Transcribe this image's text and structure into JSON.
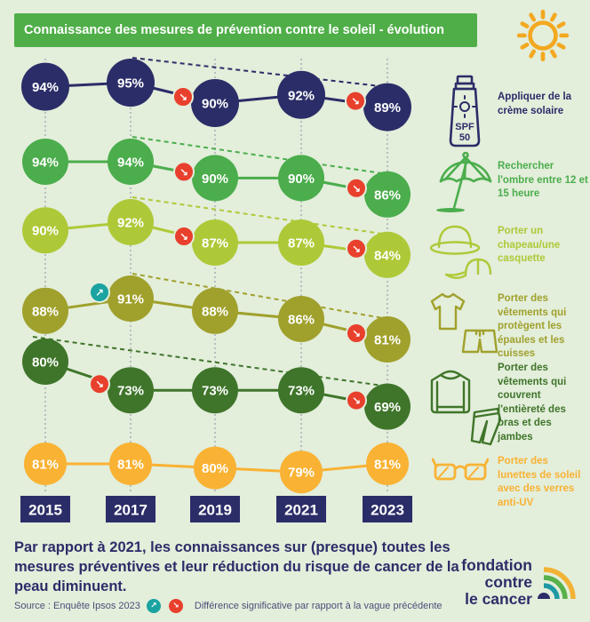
{
  "header": {
    "title": "Connaissance des mesures de prévention contre le soleil - évolution"
  },
  "chart_data": {
    "type": "line",
    "title": "Connaissance des mesures de prévention contre le soleil - évolution",
    "unit": "%",
    "categories": [
      "2015",
      "2017",
      "2019",
      "2021",
      "2023"
    ],
    "series": [
      {
        "name": "Appliquer de la crème solaire",
        "color": "#2b2d68",
        "values": [
          94,
          95,
          90,
          92,
          89
        ],
        "significant_changes": [
          {
            "category": "2019",
            "direction": "down"
          },
          {
            "category": "2023",
            "direction": "down"
          }
        ],
        "trend_arrow": {
          "from": "2017",
          "to": "2023"
        }
      },
      {
        "name": "Rechercher l'ombre entre 12 et 15 heure",
        "color": "#4bad4c",
        "values": [
          94,
          94,
          90,
          90,
          86
        ],
        "significant_changes": [
          {
            "category": "2019",
            "direction": "down"
          },
          {
            "category": "2023",
            "direction": "down"
          }
        ],
        "trend_arrow": {
          "from": "2017",
          "to": "2023"
        }
      },
      {
        "name": "Porter un chapeau/une casquette",
        "color": "#aec938",
        "values": [
          90,
          92,
          87,
          87,
          84
        ],
        "significant_changes": [
          {
            "category": "2019",
            "direction": "down"
          },
          {
            "category": "2023",
            "direction": "down"
          }
        ],
        "trend_arrow": {
          "from": "2017",
          "to": "2023"
        }
      },
      {
        "name": "Porter des vêtements qui protègent les épaules et les cuisses",
        "color": "#a0a12c",
        "values": [
          88,
          91,
          88,
          86,
          81
        ],
        "significant_changes": [
          {
            "category": "2017",
            "direction": "up"
          },
          {
            "category": "2023",
            "direction": "down"
          }
        ],
        "trend_arrow": {
          "from": "2017",
          "to": "2023"
        }
      },
      {
        "name": "Porter des vêtements qui couvrent l'entièreté des bras et des jambes",
        "color": "#3f752a",
        "values": [
          80,
          73,
          73,
          73,
          69
        ],
        "significant_changes": [
          {
            "category": "2017",
            "direction": "down"
          },
          {
            "category": "2023",
            "direction": "down"
          }
        ],
        "trend_arrow": {
          "from": "2015",
          "to": "2023"
        }
      },
      {
        "name": "Porter des lunettes de soleil avec des verres anti-UV",
        "color": "#f9b233",
        "values": [
          81,
          81,
          80,
          79,
          81
        ],
        "significant_changes": [],
        "trend_arrow": null
      }
    ],
    "ylim": [
      60,
      100
    ],
    "grid": "vertical-dotted",
    "legend_position": "right",
    "significance": {
      "up": "#1aa3a0",
      "down": "#e8402c"
    }
  },
  "icons": {
    "spf_line1": "SPF",
    "spf_line2": "50"
  },
  "footer": {
    "summary": "Par rapport à 2021, les connaissances sur (presque) toutes les mesures préventives et leur réduction du risque de cancer de la peau diminuent.",
    "source": "Source :  Enquête Ipsos 2023",
    "legend_note": "Différence significative par rapport à la vague précédente"
  },
  "logo": {
    "line1": "fondation",
    "line2": "contre",
    "line3": "le cancer"
  }
}
